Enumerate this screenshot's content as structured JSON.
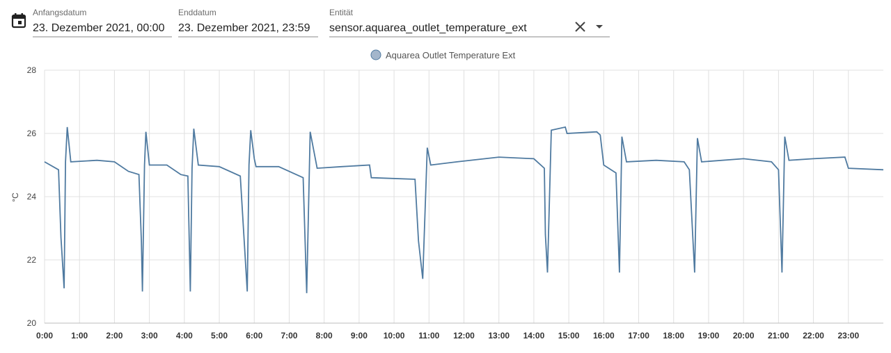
{
  "form": {
    "fields": [
      {
        "label": "Anfangsdatum",
        "value": "23. Dezember 2021, 00:00"
      },
      {
        "label": "Enddatum",
        "value": "23. Dezember 2021, 23:59"
      },
      {
        "label": "Entität",
        "value": "sensor.aquarea_outlet_temperature_ext"
      }
    ]
  },
  "chart_data": {
    "type": "line",
    "y_label": "°C",
    "grid": true,
    "legend": "top",
    "xlim": [
      0,
      24
    ],
    "ylim": [
      20,
      28
    ],
    "yticks": [
      20,
      22,
      24,
      26,
      28
    ],
    "xticks": [
      {
        "value": 0,
        "label": "0:00"
      },
      {
        "value": 1,
        "label": "1:00"
      },
      {
        "value": 2,
        "label": "2:00"
      },
      {
        "value": 3,
        "label": "3:00"
      },
      {
        "value": 4,
        "label": "4:00"
      },
      {
        "value": 5,
        "label": "5:00"
      },
      {
        "value": 6,
        "label": "6:00"
      },
      {
        "value": 7,
        "label": "7:00"
      },
      {
        "value": 8,
        "label": "8:00"
      },
      {
        "value": 9,
        "label": "9:00"
      },
      {
        "value": 10,
        "label": "10:00"
      },
      {
        "value": 11,
        "label": "11:00"
      },
      {
        "value": 12,
        "label": "12:00"
      },
      {
        "value": 13,
        "label": "13:00"
      },
      {
        "value": 14,
        "label": "14:00"
      },
      {
        "value": 15,
        "label": "15:00"
      },
      {
        "value": 16,
        "label": "16:00"
      },
      {
        "value": 17,
        "label": "17:00"
      },
      {
        "value": 18,
        "label": "18:00"
      },
      {
        "value": 19,
        "label": "19:00"
      },
      {
        "value": 20,
        "label": "20:00"
      },
      {
        "value": 21,
        "label": "21:00"
      },
      {
        "value": 22,
        "label": "22:00"
      },
      {
        "value": 23,
        "label": "23:00"
      }
    ],
    "x": [
      0,
      0.4,
      0.47,
      0.56,
      0.6,
      0.65,
      0.75,
      1.5,
      2.0,
      2.4,
      2.7,
      2.77,
      2.8,
      2.86,
      2.9,
      3.0,
      3.5,
      3.9,
      4.1,
      4.17,
      4.22,
      4.27,
      4.4,
      5.0,
      5.6,
      5.8,
      5.85,
      5.9,
      6.0,
      6.05,
      6.7,
      7.4,
      7.5,
      7.6,
      7.8,
      8.5,
      9.3,
      9.35,
      10.6,
      10.7,
      10.82,
      10.95,
      11.05,
      11.8,
      13.0,
      14.0,
      14.3,
      14.33,
      14.39,
      14.5,
      14.9,
      14.95,
      15.8,
      15.9,
      16.0,
      16.35,
      16.45,
      16.52,
      16.65,
      17.5,
      18.3,
      18.45,
      18.6,
      18.68,
      18.8,
      20.0,
      20.8,
      21.0,
      21.1,
      21.18,
      21.3,
      22.0,
      22.9,
      23.0,
      24.0
    ],
    "series": [
      {
        "name": "Aquarea Outlet Temperature Ext",
        "color": "#4f7aa0",
        "values": [
          25.1,
          24.85,
          22.7,
          21.1,
          25.1,
          26.2,
          25.1,
          25.15,
          25.1,
          24.8,
          24.7,
          22.6,
          21.0,
          25.0,
          26.05,
          25.0,
          25.0,
          24.7,
          24.65,
          21.0,
          24.9,
          26.15,
          25.0,
          24.95,
          24.65,
          21.0,
          25.0,
          26.1,
          25.2,
          24.95,
          24.95,
          24.6,
          20.95,
          26.05,
          24.9,
          24.95,
          25.0,
          24.6,
          24.55,
          22.6,
          21.4,
          25.55,
          25.0,
          25.1,
          25.25,
          25.2,
          24.9,
          22.8,
          21.6,
          26.1,
          26.2,
          26.0,
          26.05,
          25.95,
          25.0,
          24.75,
          21.6,
          25.9,
          25.1,
          25.15,
          25.1,
          24.85,
          21.6,
          25.85,
          25.1,
          25.2,
          25.1,
          24.85,
          21.6,
          25.9,
          25.15,
          25.2,
          25.25,
          24.9,
          24.85
        ]
      }
    ]
  }
}
